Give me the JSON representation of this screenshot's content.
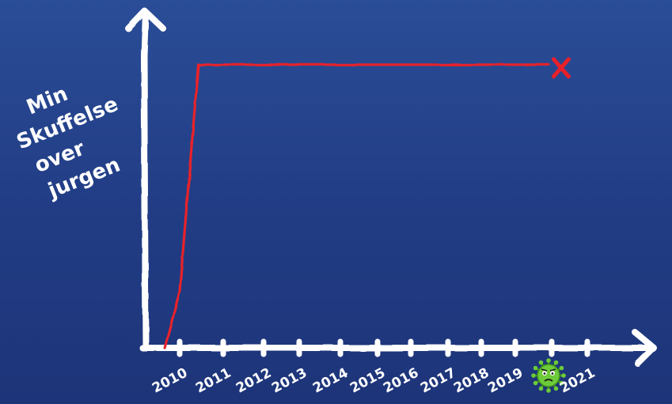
{
  "chart_data": {
    "type": "line",
    "title": "",
    "xlabel": "",
    "ylabel": "Min Skuffelse over jurgen",
    "ylabel_lines": [
      "Min",
      "Skuffelse",
      "over",
      "jurgen"
    ],
    "categories": [
      "2010",
      "2011",
      "2012",
      "2013",
      "2014",
      "2015",
      "2016",
      "2017",
      "2018",
      "2019",
      "",
      "2021"
    ],
    "x": [
      2009.6,
      2010,
      2010.5,
      2019.9
    ],
    "y": [
      0,
      0.2,
      1,
      1
    ],
    "ylim": [
      0,
      1.1
    ],
    "end_marker": "X",
    "special_tick_icon": "virus-icon",
    "grid": false,
    "colors": {
      "axis": "#ffffff",
      "line": "#e8202a",
      "virus": "#6dcb3a",
      "virus_dark": "#3f8f1f"
    }
  }
}
